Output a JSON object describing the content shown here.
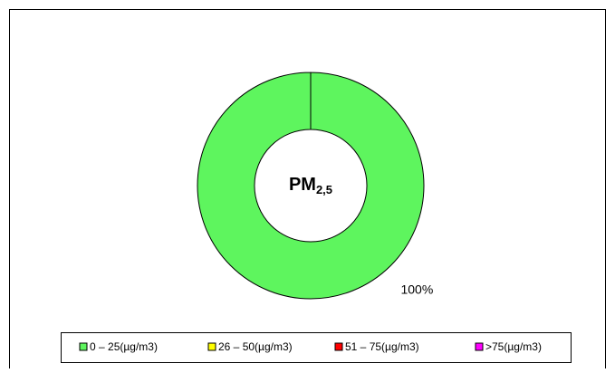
{
  "chart_data": {
    "type": "donut",
    "categories": [
      "0 – 25(µg/m3)",
      "26 – 50(µg/m3)",
      "51 – 75(µg/m3)",
      ">75(µg/m3)"
    ],
    "values": [
      100,
      0,
      0,
      0
    ],
    "value_labels": [
      "100%",
      null,
      null,
      null
    ],
    "colors": [
      "#5ef55e",
      "#ffff00",
      "#ff0000",
      "#ff00ff"
    ],
    "center_label": {
      "text": "PM",
      "subscript": "2,5"
    },
    "legend": "bottom"
  }
}
